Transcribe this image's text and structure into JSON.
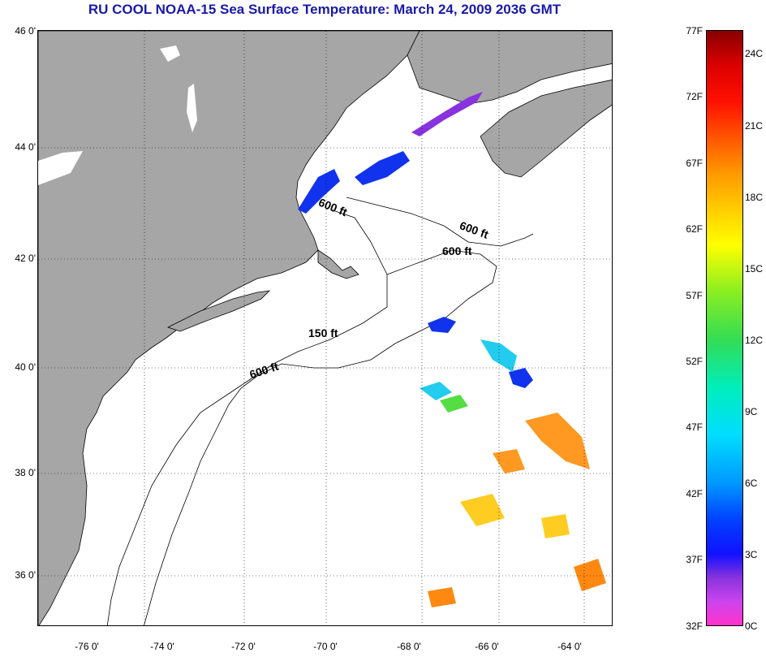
{
  "title": "RU COOL  NOAA-15  Sea Surface Temperature:  March 24, 2009 2036 GMT",
  "map": {
    "lat_labels": [
      "46 0'",
      "44 0'",
      "42 0'",
      "40 0'",
      "38 0'",
      "36 0'"
    ],
    "lon_labels": [
      "-76 0'",
      "-74 0'",
      "-72 0'",
      "-70 0'",
      "-68 0'",
      "-66 0'",
      "-64 0'"
    ],
    "contour_labels": [
      "600 ft",
      "600 ft",
      "600 ft",
      "150 ft",
      "600 ft"
    ],
    "colors": {
      "land": "#a6a6a6",
      "water": "#ffffff",
      "grid": "#000000"
    }
  },
  "colorbar": {
    "fahrenheit": [
      "77F",
      "72F",
      "67F",
      "62F",
      "57F",
      "52F",
      "47F",
      "42F",
      "37F",
      "32F"
    ],
    "celsius": [
      "24C",
      "21C",
      "18C",
      "15C",
      "12C",
      "9C",
      "6C",
      "3C",
      "0C"
    ]
  }
}
